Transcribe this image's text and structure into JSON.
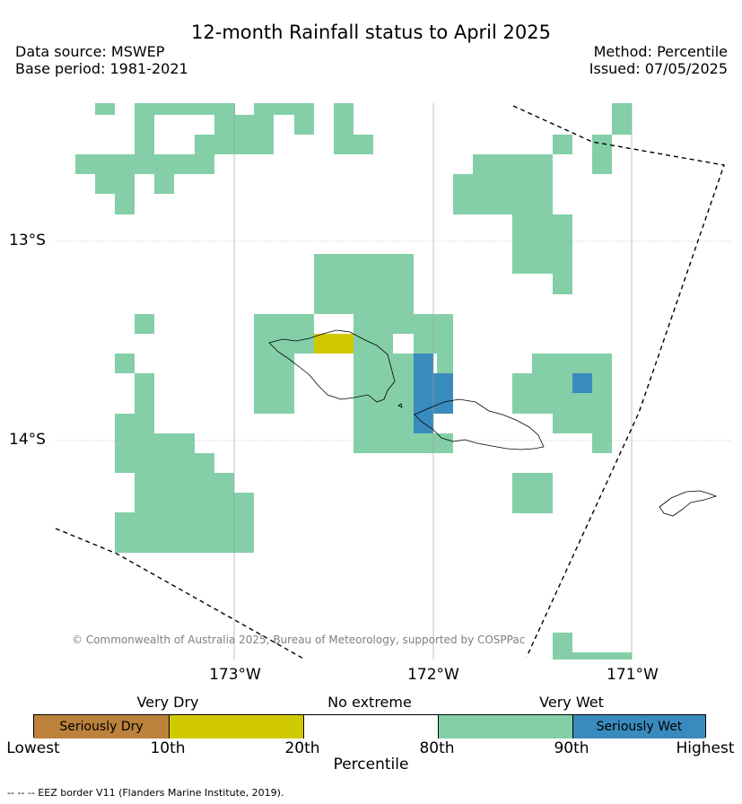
{
  "header": {
    "title": "12-month Rainfall status to April 2025",
    "data_source": "Data source: MSWEP",
    "base_period": "Base period: 1981-2021",
    "method": "Method: Percentile",
    "issued": "Issued: 07/05/2025"
  },
  "map": {
    "lat_labels": [
      "13°S",
      "14°S"
    ],
    "lon_labels": [
      "173°W",
      "172°W",
      "171°W"
    ],
    "copyright": "© Commonwealth of Australia 2025, Bureau of Meteorology, supported by COSPPac",
    "colors": {
      "very_wet": "#84cfa8",
      "seriously_wet": "#3a8bbd",
      "very_dry": "#d1c900",
      "seriously_dry": "#bc823b"
    }
  },
  "legend": {
    "categories": [
      "Very Dry",
      "No extreme",
      "Very Wet"
    ],
    "segments": [
      {
        "label": "Seriously Dry",
        "color": "#bc823b"
      },
      {
        "label": "",
        "color": "#d1c900"
      },
      {
        "label": "",
        "color": "#ffffff"
      },
      {
        "label": "",
        "color": "#84cfa8"
      },
      {
        "label": "Seriously Wet",
        "color": "#3a8bbd"
      }
    ],
    "ticks": [
      "Lowest",
      "10th",
      "20th",
      "80th",
      "90th",
      "Highest"
    ],
    "axis_label": "Percentile"
  },
  "footnote": "-- -- -- EEZ border V11 (Flanders Marine Institute, 2019)."
}
